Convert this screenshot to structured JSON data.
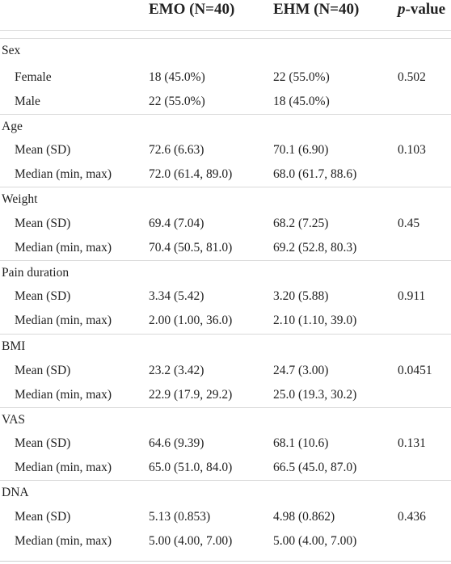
{
  "header": {
    "col_emo": "EMO (N=40)",
    "col_ehm": "EHM (N=40)",
    "col_p_italic": "p",
    "col_p_rest": "-value"
  },
  "rows": [
    {
      "label": "Sex",
      "emo": "",
      "ehm": "",
      "p": ""
    },
    {
      "label": "Female",
      "emo": "18 (45.0%)",
      "ehm": "22 (55.0%)",
      "p": "0.502"
    },
    {
      "label": "Male",
      "emo": "22 (55.0%)",
      "ehm": "18 (45.0%)",
      "p": ""
    },
    {
      "label": "Age",
      "emo": "",
      "ehm": "",
      "p": ""
    },
    {
      "label": "Mean (SD)",
      "emo": "72.6 (6.63)",
      "ehm": "70.1 (6.90)",
      "p": "0.103"
    },
    {
      "label": "Median (min, max)",
      "emo": "72.0 (61.4, 89.0)",
      "ehm": "68.0 (61.7, 88.6)",
      "p": ""
    },
    {
      "label": "Weight",
      "emo": "",
      "ehm": "",
      "p": ""
    },
    {
      "label": "Mean (SD)",
      "emo": "69.4 (7.04)",
      "ehm": "68.2 (7.25)",
      "p": "0.45"
    },
    {
      "label": "Median (min, max)",
      "emo": "70.4 (50.5, 81.0)",
      "ehm": "69.2 (52.8, 80.3)",
      "p": ""
    },
    {
      "label": "Pain duration",
      "emo": "",
      "ehm": "",
      "p": ""
    },
    {
      "label": "Mean (SD)",
      "emo": "3.34 (5.42)",
      "ehm": "3.20 (5.88)",
      "p": "0.911"
    },
    {
      "label": "Median (min, max)",
      "emo": "2.00 (1.00, 36.0)",
      "ehm": "2.10 (1.10, 39.0)",
      "p": ""
    },
    {
      "label": "BMI",
      "emo": "",
      "ehm": "",
      "p": ""
    },
    {
      "label": "Mean (SD)",
      "emo": "23.2 (3.42)",
      "ehm": "24.7 (3.00)",
      "p": "0.0451"
    },
    {
      "label": "Median (min, max)",
      "emo": "22.9 (17.9, 29.2)",
      "ehm": "25.0 (19.3, 30.2)",
      "p": ""
    },
    {
      "label": "VAS",
      "emo": "",
      "ehm": "",
      "p": ""
    },
    {
      "label": "Mean (SD)",
      "emo": "64.6 (9.39)",
      "ehm": "68.1 (10.6)",
      "p": "0.131"
    },
    {
      "label": "Median (min, max)",
      "emo": "65.0 (51.0, 84.0)",
      "ehm": "66.5 (45.0, 87.0)",
      "p": ""
    },
    {
      "label": "DNA",
      "emo": "",
      "ehm": "",
      "p": ""
    },
    {
      "label": "Mean (SD)",
      "emo": "5.13 (0.853)",
      "ehm": "4.98 (0.862)",
      "p": "0.436"
    },
    {
      "label": "Median (min, max)",
      "emo": "5.00 (4.00, 7.00)",
      "ehm": "5.00 (4.00, 7.00)",
      "p": ""
    }
  ]
}
